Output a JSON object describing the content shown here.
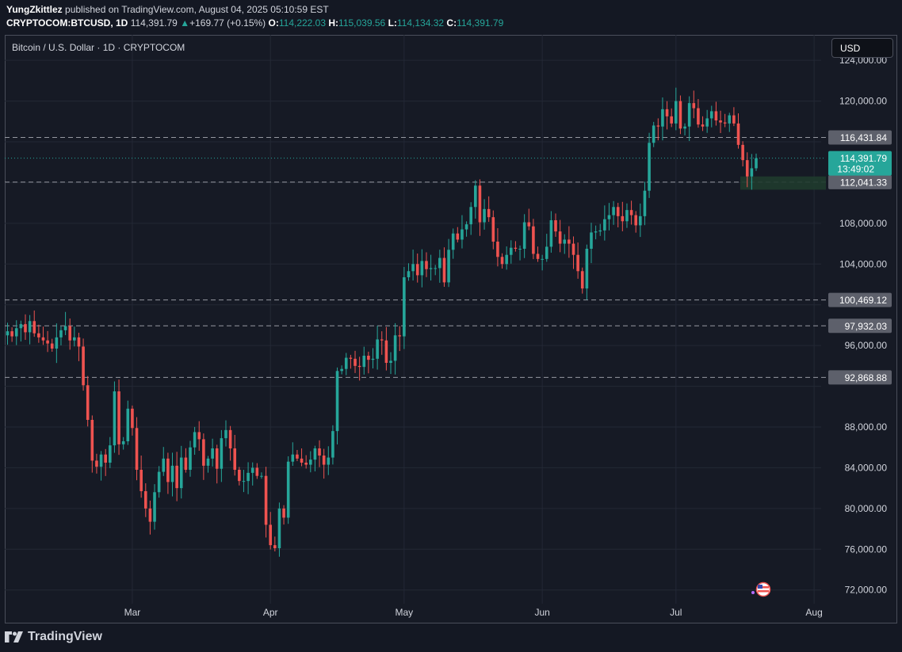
{
  "header": {
    "author": "YungZkittlez",
    "published_text": "published on TradingView.com, August 04, 2025 05:10:59 EST",
    "symbol": "CRYPTOCOM:BTCUSD, 1D",
    "last": "114,391.79",
    "change_arrow": "▲",
    "change": "+169.77 (+0.15%)",
    "o_label": "O:",
    "open": "114,222.03",
    "h_label": "H:",
    "high": "115,039.56",
    "l_label": "L:",
    "low": "114,134.32",
    "c_label": "C:",
    "close": "114,391.79"
  },
  "chart_title": "Bitcoin / U.S. Dollar · 1D · CRYPTOCOM",
  "currency_button": "USD",
  "brand": "TradingView",
  "colors": {
    "up": "#26a69a",
    "down": "#ef5350",
    "background": "#161a25",
    "grid": "#242a36"
  },
  "chart_data": {
    "type": "candlestick",
    "y_ticks": [
      "124,000.00",
      "120,000.00",
      "108,000.00",
      "104,000.00",
      "96,000.00",
      "88,000.00",
      "84,000.00",
      "80,000.00",
      "76,000.00",
      "72,000.00"
    ],
    "x_ticks": [
      "Mar",
      "Apr",
      "May",
      "Jun",
      "Jul",
      "Aug"
    ],
    "horizontal_levels": [
      "116,431.84",
      "112,041.33",
      "100,469.12",
      "97,932.03",
      "92,868.88"
    ],
    "last_price": {
      "value": "114,391.79",
      "countdown": "13:49:02"
    },
    "approx_range": {
      "start": "2025-02-01",
      "end": "2025-08-04",
      "ymin": 70500,
      "ymax": 126500
    },
    "closes": [
      97400,
      96900,
      97700,
      98100,
      97300,
      98400,
      97200,
      96800,
      96500,
      96200,
      95700,
      96800,
      97500,
      97900,
      96500,
      96800,
      95900,
      92100,
      88700,
      84700,
      84100,
      85300,
      84500,
      86200,
      91500,
      86300,
      86600,
      89800,
      87900,
      83800,
      81700,
      80000,
      78700,
      81600,
      83600,
      84900,
      82600,
      84200,
      82000,
      85000,
      83800,
      86000,
      87500,
      86800,
      84200,
      84900,
      85900,
      83900,
      86900,
      87700,
      85900,
      83800,
      82700,
      82700,
      83500,
      84000,
      83200,
      83200,
      78400,
      76400,
      76100,
      80000,
      79100,
      84600,
      85300,
      84900,
      84500,
      84300,
      84800,
      85900,
      85200,
      84300,
      85000,
      87600,
      93500,
      93700,
      94800,
      94700,
      94000,
      93900,
      95000,
      94600,
      94700,
      96600,
      96500,
      94300,
      94500,
      97000,
      96900,
      102700,
      103300,
      104000,
      102900,
      104300,
      103500,
      103600,
      103600,
      104600,
      102200,
      105400,
      107000,
      106400,
      107400,
      107900,
      109600,
      111700,
      108100,
      109400,
      108600,
      106200,
      104700,
      104000,
      104900,
      105600,
      105500,
      105500,
      108100,
      107700,
      105000,
      104500,
      104500,
      105700,
      108300,
      107200,
      106000,
      106400,
      106000,
      104900,
      103300,
      101600,
      105500,
      107100,
      107200,
      107300,
      108400,
      108800,
      109600,
      108700,
      108200,
      109300,
      108800,
      107800,
      108700,
      111200,
      115900,
      117600,
      117500,
      119200,
      118500,
      117800,
      120000,
      117300,
      117500,
      119800,
      119300,
      117700,
      117500,
      118300,
      119000,
      118100,
      117900,
      117800,
      118600,
      117800,
      115700,
      114200,
      112600,
      113400,
      114392
    ]
  }
}
